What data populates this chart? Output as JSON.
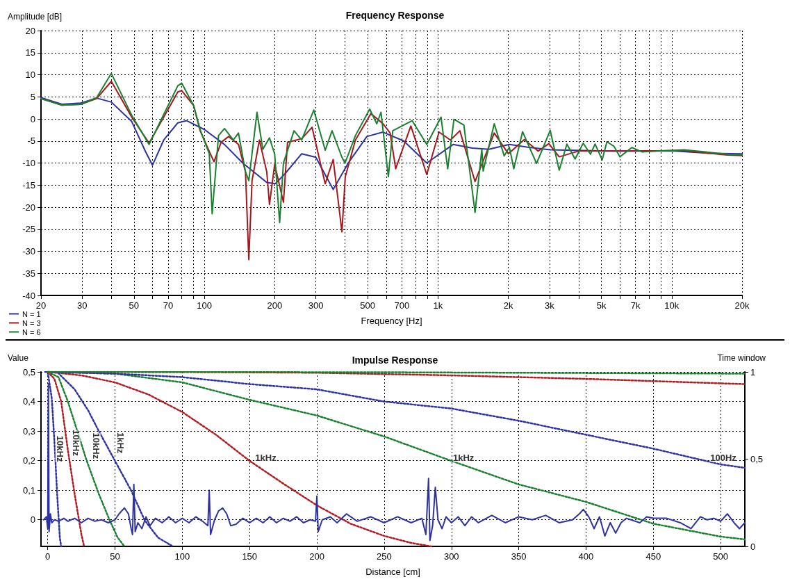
{
  "chart_data": [
    {
      "type": "line",
      "title": "Frequency Response",
      "xlabel": "Frequency [Hz]",
      "ylabel": "Amplitude [dB]",
      "log": "x",
      "grid": true,
      "legend": "bottom left",
      "xlim": [
        20,
        20000
      ],
      "xticks": [
        20,
        30,
        {
          "value": 40,
          "label": null
        },
        50,
        {
          "value": 60,
          "label": null
        },
        70,
        {
          "value": 80,
          "label": null
        },
        {
          "value": 90,
          "label": null
        },
        100,
        200,
        300,
        {
          "value": 400,
          "label": null
        },
        500,
        {
          "value": 600,
          "label": null
        },
        700,
        {
          "value": 800,
          "label": null
        },
        {
          "value": 900,
          "label": null
        },
        {
          "value": 1000,
          "label": "1k"
        },
        {
          "value": 2000,
          "label": "2k"
        },
        {
          "value": 3000,
          "label": "3k"
        },
        {
          "value": 4000,
          "label": null
        },
        {
          "value": 5000,
          "label": "5k"
        },
        {
          "value": 6000,
          "label": null
        },
        {
          "value": 7000,
          "label": "7k"
        },
        {
          "value": 8000,
          "label": null
        },
        {
          "value": 9000,
          "label": null
        },
        {
          "value": 10000,
          "label": "10k"
        },
        {
          "value": 20000,
          "label": "20k"
        }
      ],
      "ylim": [
        -40,
        20
      ],
      "yticks": [
        -40,
        -35,
        -30,
        -25,
        -20,
        -15,
        -10,
        -5,
        0,
        5,
        10,
        15,
        20
      ],
      "series": [
        {
          "name": "N = 1",
          "color": "#2e32a0",
          "x": [
            20,
            24.6,
            29.6,
            34.6,
            40,
            48.9,
            56,
            60,
            67,
            77,
            84,
            100,
            122,
            146,
            185,
            201,
            220,
            261,
            300,
            356,
            413,
            496,
            581,
            713,
            895,
            1160,
            1400,
            1650,
            2020,
            2420,
            3020,
            5300,
            10300,
            14500,
            20000
          ],
          "values": [
            4.8,
            3.3,
            3.6,
            4.7,
            3.8,
            -0.6,
            -7.4,
            -10.5,
            -4.8,
            -0.9,
            -0.4,
            -2.4,
            -5.8,
            -10,
            -14.4,
            -14.7,
            -12.6,
            -7.9,
            -8.7,
            -16,
            -10,
            -4,
            -3,
            -5,
            -10,
            -5.8,
            -6.6,
            -6.9,
            -5.8,
            -6.4,
            -7,
            -7.3,
            -7.3,
            -7.8,
            -7.9
          ]
        },
        {
          "name": "N = 3",
          "color": "#a3181d",
          "x": [
            20,
            24.6,
            29.6,
            34.6,
            40,
            48.9,
            58,
            67,
            77,
            80,
            90,
            96,
            105,
            110,
            118,
            127,
            140,
            150,
            155,
            160,
            172,
            185,
            190,
            200,
            218,
            227,
            261,
            289,
            329,
            356,
            388,
            401,
            443,
            516,
            581,
            624,
            659,
            765,
            895,
            1010,
            1130,
            1240,
            1440,
            1740,
            2000,
            2340,
            2680,
            2980,
            3300,
            3990,
            6680,
            11300,
            17300,
            20000
          ],
          "values": [
            4.6,
            3.1,
            3.3,
            4.6,
            8.5,
            0.4,
            -5.5,
            0.4,
            6.1,
            6.4,
            3,
            -2.7,
            -7.4,
            -9.7,
            -5.3,
            -4,
            -5.8,
            -12,
            -31.9,
            -14,
            -4.8,
            -12,
            -19.4,
            -10.3,
            -18.9,
            -5.3,
            -4.5,
            -1.9,
            -14.7,
            -9.2,
            -25.6,
            -13.1,
            -4.8,
            1.2,
            -1.1,
            -3.2,
            -11.3,
            -1.6,
            -12.6,
            -3,
            -4.8,
            -2.7,
            -14.2,
            -3.2,
            -7.9,
            -4.7,
            -7.3,
            -5.6,
            -8.6,
            -7.3,
            -7.3,
            -7.2,
            -8.2,
            -8.3
          ]
        },
        {
          "name": "N = 6",
          "color": "#1a8030",
          "x": [
            20,
            24.6,
            29.6,
            34.6,
            40,
            48.9,
            58,
            67,
            77,
            80,
            90,
            96,
            105,
            108,
            115,
            122,
            133,
            140,
            150,
            155,
            168,
            178,
            190,
            200,
            210,
            218,
            242,
            261,
            294,
            329,
            352,
            388,
            400,
            443,
            510,
            547,
            570,
            613,
            640,
            775,
            895,
            1030,
            1100,
            1170,
            1290,
            1440,
            1540,
            1560,
            1740,
            1920,
            2020,
            2110,
            2300,
            2640,
            3020,
            3300,
            3560,
            3860,
            4180,
            4490,
            4700,
            5040,
            5280,
            5660,
            6000,
            6750,
            7480,
            8600,
            11300,
            17300,
            20000
          ],
          "values": [
            4.6,
            3.1,
            3.3,
            4.8,
            10.3,
            0.8,
            -5.8,
            1,
            7.5,
            8.1,
            3,
            -2.5,
            -7.9,
            -21.5,
            -3.8,
            -2.2,
            -4.8,
            -3.2,
            -12,
            -14,
            1.5,
            -6.9,
            -4.3,
            -8,
            -23.5,
            -10,
            -2.7,
            -4.8,
            2,
            -7.1,
            -2.7,
            -8.7,
            -10,
            -3.8,
            2.2,
            -1.1,
            1.5,
            -13.1,
            -2.7,
            -0.4,
            -5.8,
            0.4,
            -11.3,
            -0.1,
            -1.4,
            -21.2,
            -6.9,
            -11.8,
            -1.1,
            -8.4,
            -6.4,
            -11.3,
            -2.9,
            -10.1,
            -2.6,
            -11.6,
            -5.7,
            -9.1,
            -5.5,
            -8,
            -5.7,
            -9.3,
            -5.2,
            -6.2,
            -8.6,
            -6.5,
            -7.5,
            -7.3,
            -7,
            -8,
            -8.1
          ]
        }
      ]
    },
    {
      "type": "line",
      "title": "Impulse Response",
      "xlabel": "Distance [cm]",
      "ylabel": "Value",
      "y2label": "Time window",
      "grid": true,
      "legend": false,
      "xlim": [
        -5,
        518
      ],
      "xticks": [
        0,
        50,
        100,
        150,
        200,
        250,
        300,
        350,
        400,
        450,
        500
      ],
      "ylim": [
        -0.09,
        0.5
      ],
      "yticks": [
        0,
        {
          "value": 0.1,
          "label": "0,1"
        },
        {
          "value": 0.2,
          "label": "0,2"
        },
        {
          "value": 0.3,
          "label": "0,3"
        },
        {
          "value": 0.4,
          "label": "0,4"
        },
        {
          "value": 0.5,
          "label": "0,5"
        }
      ],
      "y2lim": [
        0,
        1
      ],
      "y2ticks": [
        0,
        {
          "value": 0.5,
          "label": "0,5"
        },
        1
      ],
      "annotations": [
        {
          "text": "10kHz",
          "x": 9,
          "y": 0.24
        },
        {
          "text": "10kHz",
          "x": 21,
          "y": 0.26
        },
        {
          "text": "10kHz",
          "x": 36,
          "y": 0.25
        },
        {
          "text": "1kHz",
          "x": 54,
          "y": 0.26
        },
        {
          "text": "1kHz",
          "x": 162,
          "y": 0.21
        },
        {
          "text": "1kHz",
          "x": 309,
          "y": 0.21
        },
        {
          "text": "100Hz",
          "x": 502,
          "y": 0.21
        }
      ],
      "series": [
        {
          "color": "#2e32a0",
          "x": [
            -3,
            -1,
            0,
            0.5,
            1,
            2,
            3,
            5,
            8,
            12,
            15,
            20,
            25,
            30,
            35,
            40,
            45,
            50,
            53,
            57,
            60,
            62,
            63,
            64,
            65,
            67,
            70,
            73,
            76,
            80,
            85,
            90,
            95,
            100,
            105,
            110,
            115,
            119,
            120,
            121,
            124,
            127,
            130,
            133,
            136,
            140,
            145,
            150,
            155,
            160,
            165,
            170,
            175,
            180,
            185,
            190,
            195,
            199,
            200,
            201,
            204,
            210,
            215,
            222,
            230,
            240,
            250,
            260,
            270,
            278,
            281,
            283,
            284,
            286,
            288,
            290,
            293,
            296,
            300,
            305,
            310,
            315,
            320,
            330,
            340,
            350,
            360,
            370,
            380,
            390,
            395,
            398,
            402,
            406,
            410,
            414,
            418,
            422,
            426,
            430,
            440,
            445,
            450,
            460,
            470,
            478,
            485,
            490,
            495,
            500,
            505,
            510,
            514,
            518
          ],
          "values": [
            0,
            0.01,
            -0.03,
            0.46,
            -0.04,
            0.02,
            -0.01,
            0,
            -0.005,
            0.005,
            -0.005,
            0.005,
            -0.01,
            0.005,
            -0.005,
            0,
            -0.01,
            0,
            0.02,
            0.04,
            0.02,
            -0.03,
            -0.05,
            0.12,
            -0.04,
            -0.01,
            -0.03,
            0.01,
            -0.02,
            0.005,
            -0.01,
            0.01,
            -0.01,
            0.005,
            -0.01,
            0.01,
            -0.005,
            -0.02,
            0.1,
            -0.05,
            0,
            0.03,
            0.04,
            0.02,
            -0.02,
            -0.015,
            0.005,
            -0.01,
            0.005,
            -0.01,
            0.01,
            -0.01,
            0.005,
            -0.005,
            0.01,
            -0.01,
            0,
            -0.005,
            0.08,
            -0.04,
            0,
            0.01,
            -0.01,
            0.02,
            -0.005,
            0.01,
            -0.01,
            0.01,
            -0.01,
            0.005,
            -0.05,
            0.14,
            -0.07,
            -0.02,
            0.11,
            0,
            -0.03,
            0.01,
            -0.01,
            0.01,
            -0.02,
            0.01,
            -0.01,
            0.015,
            -0.01,
            0.01,
            0,
            0.015,
            -0.01,
            0,
            0.02,
            0.035,
            0.01,
            -0.03,
            0.01,
            -0.055,
            -0.01,
            -0.045,
            -0.01,
            0.005,
            -0.01,
            0.01,
            0.005,
            0.005,
            -0.01,
            -0.03,
            0.01,
            0,
            0.005,
            -0.005,
            0.02,
            -0.01,
            -0.03,
            -0.01
          ]
        },
        {
          "axis": "y2",
          "line_style": "dotted",
          "color": "#2e32a0",
          "x": [
            -2,
            0,
            3,
            5,
            7,
            9,
            10
          ],
          "values": [
            1,
            1,
            0.85,
            0.6,
            0.3,
            0.05,
            0
          ]
        },
        {
          "axis": "y2",
          "line_style": "dotted",
          "color": "#b01c22",
          "x": [
            0,
            5,
            10,
            15,
            20,
            25,
            27
          ],
          "values": [
            1,
            0.96,
            0.83,
            0.55,
            0.3,
            0.07,
            0
          ]
        },
        {
          "axis": "y2",
          "line_style": "dotted",
          "color": "#1a8030",
          "x": [
            0,
            8,
            15,
            22,
            29,
            38,
            46,
            52,
            57
          ],
          "values": [
            1,
            0.97,
            0.83,
            0.66,
            0.49,
            0.3,
            0.15,
            0.05,
            0
          ]
        },
        {
          "axis": "y2",
          "line_style": "dotted",
          "color": "#2e32a0",
          "x": [
            0,
            7,
            20,
            30,
            38,
            50,
            62,
            72,
            82,
            93
          ],
          "values": [
            1,
            1,
            0.9,
            0.78,
            0.66,
            0.49,
            0.32,
            0.15,
            0.05,
            0
          ]
        },
        {
          "axis": "y2",
          "line_style": "dotted",
          "color": "#b01c22",
          "x": [
            0,
            25,
            50,
            75,
            100,
            125,
            150,
            175,
            200,
            225,
            250,
            270,
            285
          ],
          "values": [
            1,
            0.98,
            0.94,
            0.87,
            0.77,
            0.64,
            0.49,
            0.36,
            0.235,
            0.13,
            0.06,
            0.02,
            0
          ]
        },
        {
          "axis": "y2",
          "line_style": "dotted",
          "color": "#1a8030",
          "x": [
            0,
            50,
            100,
            150,
            200,
            250,
            300,
            350,
            400,
            450,
            500,
            518
          ],
          "values": [
            1,
            0.99,
            0.94,
            0.84,
            0.75,
            0.63,
            0.49,
            0.355,
            0.255,
            0.13,
            0.056,
            0.04
          ]
        },
        {
          "axis": "y2",
          "line_style": "dotted",
          "color": "#2e32a0",
          "x": [
            0,
            50,
            100,
            150,
            200,
            250,
            300,
            350,
            400,
            450,
            500,
            518
          ],
          "values": [
            1,
            0.99,
            0.97,
            0.93,
            0.9,
            0.83,
            0.79,
            0.72,
            0.64,
            0.56,
            0.47,
            0.45
          ]
        },
        {
          "axis": "y2",
          "line_style": "dotted",
          "color": "#b01c22",
          "x": [
            0,
            100,
            200,
            300,
            400,
            518
          ],
          "values": [
            1,
            1,
            0.995,
            0.98,
            0.96,
            0.93
          ]
        },
        {
          "axis": "y2",
          "line_style": "dotted",
          "color": "#1a8030",
          "x": [
            0,
            250,
            518
          ],
          "values": [
            1,
            0.998,
            0.99
          ]
        }
      ]
    }
  ]
}
